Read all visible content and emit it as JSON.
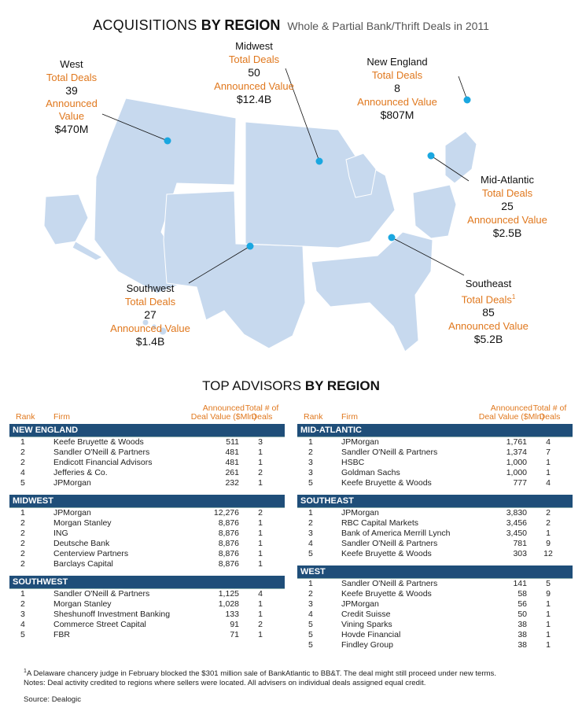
{
  "title": {
    "part1": "ACQUISITIONS",
    "part2": "BY REGION",
    "subtitle": "Whole & Partial Bank/Thrift Deals in 2011"
  },
  "colors": {
    "map_fill": "#c7d9ee",
    "map_stroke": "#ffffff",
    "dot": "#1aa7e0",
    "accent": "#e0781e",
    "band": "#1f4e79"
  },
  "chart_data": {
    "type": "table",
    "regions": [
      {
        "name": "West",
        "total_deals_label": "Total Deals",
        "total_deals": "39",
        "value_label": "Announced Value",
        "announced_value": "$470M"
      },
      {
        "name": "Midwest",
        "total_deals_label": "Total Deals",
        "total_deals": "50",
        "value_label": "Announced Value",
        "announced_value": "$12.4B"
      },
      {
        "name": "New England",
        "total_deals_label": "Total Deals",
        "total_deals": "8",
        "value_label": "Announced Value",
        "announced_value": "$807M"
      },
      {
        "name": "Mid-Atlantic",
        "total_deals_label": "Total Deals",
        "total_deals": "25",
        "value_label": "Announced Value",
        "announced_value": "$2.5B"
      },
      {
        "name": "Southwest",
        "total_deals_label": "Total Deals",
        "total_deals": "27",
        "value_label": "Announced Value",
        "announced_value": "$1.4B"
      },
      {
        "name": "Southeast",
        "total_deals_label": "Total Deals",
        "footnote_mark": "1",
        "total_deals": "85",
        "value_label": "Announced Value",
        "announced_value": "$5.2B"
      }
    ]
  },
  "advisors": {
    "title_part1": "TOP ADVISORS",
    "title_part2": "BY REGION",
    "headers": {
      "rank": "Rank",
      "firm": "Firm",
      "value_line1": "Announced",
      "value_line2": "Deal Value ($Mln)",
      "total_line1": "Total # of",
      "total_line2": "Deals"
    },
    "left": [
      {
        "region": "NEW ENGLAND",
        "rows": [
          {
            "rank": "1",
            "firm": "Keefe Bruyette & Woods",
            "value": "511",
            "deals": "3"
          },
          {
            "rank": "2",
            "firm": "Sandler O'Neill & Partners",
            "value": "481",
            "deals": "1"
          },
          {
            "rank": "2",
            "firm": "Endicott Financial Advisors",
            "value": "481",
            "deals": "1"
          },
          {
            "rank": "4",
            "firm": "Jefferies & Co.",
            "value": "261",
            "deals": "2"
          },
          {
            "rank": "5",
            "firm": "JPMorgan",
            "value": "232",
            "deals": "1"
          }
        ]
      },
      {
        "region": "MIDWEST",
        "rows": [
          {
            "rank": "1",
            "firm": "JPMorgan",
            "value": "12,276",
            "deals": "2"
          },
          {
            "rank": "2",
            "firm": "Morgan Stanley",
            "value": "8,876",
            "deals": "1"
          },
          {
            "rank": "2",
            "firm": "ING",
            "value": "8,876",
            "deals": "1"
          },
          {
            "rank": "2",
            "firm": "Deutsche Bank",
            "value": "8,876",
            "deals": "1"
          },
          {
            "rank": "2",
            "firm": "Centerview Partners",
            "value": "8,876",
            "deals": "1"
          },
          {
            "rank": "2",
            "firm": "Barclays Capital",
            "value": "8,876",
            "deals": "1"
          }
        ]
      },
      {
        "region": "SOUTHWEST",
        "rows": [
          {
            "rank": "1",
            "firm": "Sandler O'Neill & Partners",
            "value": "1,125",
            "deals": "4"
          },
          {
            "rank": "2",
            "firm": "Morgan Stanley",
            "value": "1,028",
            "deals": "1"
          },
          {
            "rank": "3",
            "firm": "Sheshunoff Investment Banking",
            "value": "133",
            "deals": "1"
          },
          {
            "rank": "4",
            "firm": "Commerce Street Capital",
            "value": "91",
            "deals": "2"
          },
          {
            "rank": "5",
            "firm": "FBR",
            "value": "71",
            "deals": "1"
          }
        ]
      }
    ],
    "right": [
      {
        "region": "MID-ATLANTIC",
        "rows": [
          {
            "rank": "1",
            "firm": "JPMorgan",
            "value": "1,761",
            "deals": "4"
          },
          {
            "rank": "2",
            "firm": "Sandler O'Neill & Partners",
            "value": "1,374",
            "deals": "7"
          },
          {
            "rank": "3",
            "firm": "HSBC",
            "value": "1,000",
            "deals": "1"
          },
          {
            "rank": "3",
            "firm": "Goldman Sachs",
            "value": "1,000",
            "deals": "1"
          },
          {
            "rank": "5",
            "firm": "Keefe Bruyette & Woods",
            "value": "777",
            "deals": "4"
          }
        ]
      },
      {
        "region": "SOUTHEAST",
        "rows": [
          {
            "rank": "1",
            "firm": "JPMorgan",
            "value": "3,830",
            "deals": "2"
          },
          {
            "rank": "2",
            "firm": "RBC Capital Markets",
            "value": "3,456",
            "deals": "2"
          },
          {
            "rank": "3",
            "firm": "Bank of America Merrill Lynch",
            "value": "3,450",
            "deals": "1"
          },
          {
            "rank": "4",
            "firm": "Sandler O'Neill & Partners",
            "value": "781",
            "deals": "9"
          },
          {
            "rank": "5",
            "firm": "Keefe Bruyette & Woods",
            "value": "303",
            "deals": "12"
          }
        ]
      },
      {
        "region": "WEST",
        "rows": [
          {
            "rank": "1",
            "firm": "Sandler O'Neill & Partners",
            "value": "141",
            "deals": "5"
          },
          {
            "rank": "2",
            "firm": "Keefe Bruyette & Woods",
            "value": "58",
            "deals": "9"
          },
          {
            "rank": "3",
            "firm": "JPMorgan",
            "value": "56",
            "deals": "1"
          },
          {
            "rank": "4",
            "firm": "Credit Suisse",
            "value": "50",
            "deals": "1"
          },
          {
            "rank": "5",
            "firm": "Vining Sparks",
            "value": "38",
            "deals": "1"
          },
          {
            "rank": "5",
            "firm": "Hovde Financial",
            "value": "38",
            "deals": "1"
          },
          {
            "rank": "5",
            "firm": "Findley Group",
            "value": "38",
            "deals": "1"
          }
        ]
      }
    ]
  },
  "notes": {
    "footnote_mark": "1",
    "footnote": "A Delaware chancery judge in February blocked the $301 million sale of BankAtlantic to BB&T. The deal might still proceed under new terms.",
    "note": "Notes: Deal activity credited to regions where sellers were located. All advisers on individual deals assigned equal credit.",
    "source": "Source: Dealogic"
  }
}
